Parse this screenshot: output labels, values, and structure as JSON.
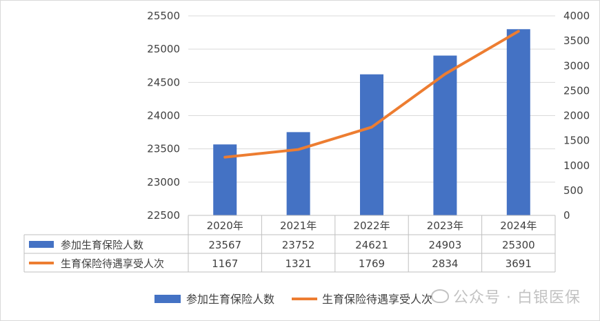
{
  "chart_data": {
    "type": "bar",
    "categories": [
      "2020年",
      "2021年",
      "2022年",
      "2023年",
      "2024年"
    ],
    "series": [
      {
        "name": "参加生育保险人数",
        "type": "bar",
        "axis": "left",
        "color": "#4472C4",
        "values": [
          23567,
          23752,
          24621,
          24903,
          25300
        ]
      },
      {
        "name": "生育保险待遇享受人次",
        "type": "line",
        "axis": "right",
        "color": "#ED7D31",
        "values": [
          1167,
          1321,
          1769,
          2834,
          3691
        ]
      }
    ],
    "yleft": {
      "min": 22500,
      "max": 25500,
      "step": 500,
      "ticks": [
        "22500",
        "23000",
        "23500",
        "24000",
        "24500",
        "25000",
        "25500"
      ]
    },
    "yright": {
      "min": 0,
      "max": 4000,
      "step": 500,
      "ticks": [
        "0",
        "500",
        "1000",
        "1500",
        "2000",
        "2500",
        "3000",
        "3500",
        "4000"
      ]
    },
    "grid": true,
    "data_table": true,
    "legend_position": "bottom"
  },
  "watermark": {
    "text": "公众号 · 白银医保"
  }
}
